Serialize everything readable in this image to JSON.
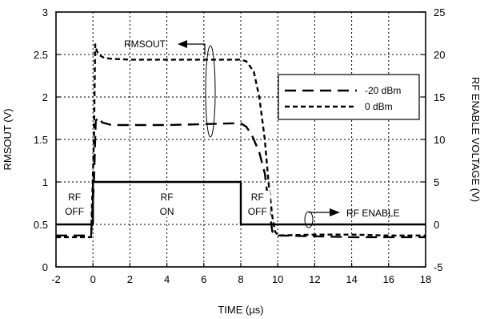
{
  "chart_data": {
    "type": "line",
    "xlabel": "TIME (µs)",
    "ylabel_left": "RMSOUT (V)",
    "ylabel_right": "RF ENABLE VOLTAGE (V)",
    "xlim": [
      -2,
      18
    ],
    "ylim_left": [
      0,
      3
    ],
    "ylim_right": [
      -5,
      25
    ],
    "x_ticks": [
      "-2",
      "0",
      "2",
      "4",
      "6",
      "8",
      "10",
      "12",
      "14",
      "16",
      "18"
    ],
    "y_left_ticks": [
      "0",
      "0.5",
      "1",
      "1.5",
      "2",
      "2.5",
      "3"
    ],
    "y_right_ticks": [
      "-5",
      "0",
      "5",
      "10",
      "15",
      "20",
      "25"
    ],
    "grid": true,
    "legend_placement": "top-right",
    "legend": [
      {
        "label": "-20 dBm",
        "style": "long-dash"
      },
      {
        "label": "0 dBm",
        "style": "short-dash"
      }
    ],
    "series": [
      {
        "name": "-20 dBm",
        "axis": "left",
        "style": "long-dash",
        "x": [
          -2,
          -0.1,
          0.05,
          0.15,
          0.3,
          0.5,
          1,
          2,
          4,
          6,
          7.5,
          8,
          8.3,
          8.6,
          9,
          9.3,
          9.5,
          9.7,
          9.85,
          10,
          12,
          14,
          16,
          18
        ],
        "y": [
          0.37,
          0.37,
          1.0,
          1.72,
          1.76,
          1.7,
          1.67,
          1.67,
          1.67,
          1.68,
          1.69,
          1.69,
          1.65,
          1.55,
          1.35,
          1.1,
          0.75,
          0.42,
          0.37,
          0.37,
          0.36,
          0.35,
          0.35,
          0.35
        ]
      },
      {
        "name": "0 dBm",
        "axis": "left",
        "style": "short-dash",
        "x": [
          -2,
          -0.1,
          0.05,
          0.12,
          0.2,
          0.3,
          0.6,
          1,
          2,
          4,
          6,
          7.5,
          8,
          8.3,
          8.7,
          9,
          9.3,
          9.5,
          9.7,
          9.85,
          10,
          12,
          14,
          16,
          18
        ],
        "y": [
          0.35,
          0.35,
          1.5,
          2.62,
          2.55,
          2.5,
          2.46,
          2.45,
          2.44,
          2.44,
          2.44,
          2.44,
          2.44,
          2.42,
          2.3,
          2.0,
          1.5,
          1.0,
          0.6,
          0.42,
          0.37,
          0.38,
          0.38,
          0.37,
          0.37
        ]
      },
      {
        "name": "RF ENABLE",
        "axis": "right",
        "style": "solid",
        "x": [
          -2,
          0,
          0,
          8,
          8,
          18
        ],
        "y": [
          0,
          0,
          5,
          5,
          0,
          0
        ]
      }
    ],
    "annotations": {
      "rmsout": "RMSOUT",
      "rf_enable": "RF ENABLE",
      "rf": "RF",
      "off": "OFF",
      "on": "ON"
    }
  }
}
